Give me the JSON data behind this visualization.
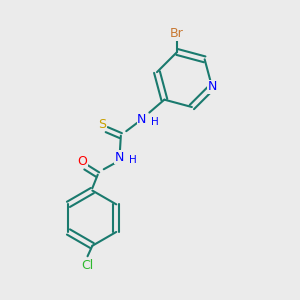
{
  "bg_color": "#ebebeb",
  "bond_color": "#1a7a6e",
  "bond_width": 1.5,
  "atom_colors": {
    "Br": "#c87832",
    "Cl": "#2eb82e",
    "N": "#0000ff",
    "O": "#ff0000",
    "S": "#c8a000",
    "C": "#1a7a6e"
  },
  "font_size": 9,
  "font_size_small": 7.5
}
